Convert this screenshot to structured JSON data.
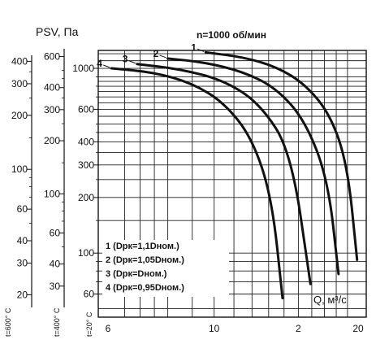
{
  "chart_data": {
    "type": "line",
    "title": "n=1000 об/мин",
    "ylabel": "PSV, Па",
    "xlabel": "Q, м³/с",
    "scale": "log-log",
    "grid": true,
    "x_axis": {
      "range": [
        6,
        20
      ],
      "tick_labels": [
        "6",
        "10",
        "2",
        "20"
      ]
    },
    "y_axes": [
      {
        "temperature": "t=20° C",
        "range": [
          45,
          1250
        ],
        "ticks": [
          60,
          100,
          200,
          300,
          400,
          600,
          1000
        ]
      },
      {
        "temperature": "t=400° C",
        "range": [
          20,
          650
        ],
        "ticks": [
          30,
          40,
          60,
          100,
          200,
          300,
          400,
          600
        ]
      },
      {
        "temperature": "t=600° C",
        "range": [
          15,
          460
        ],
        "ticks": [
          20,
          30,
          40,
          60,
          100,
          200,
          300,
          400
        ]
      }
    ],
    "series": [
      {
        "name": "1 (Dрк=1,1Dном.)",
        "label": "1",
        "x": [
          9.6,
          11.5,
          13.5,
          15.5,
          17.5,
          19.0,
          19.9
        ],
        "y": [
          1220,
          1150,
          1020,
          820,
          560,
          300,
          92
        ]
      },
      {
        "name": "2 (Dрк=1,05Dном.)",
        "label": "2",
        "x": [
          8.0,
          9.5,
          11.5,
          13.5,
          15.5,
          17.3,
          18.2
        ],
        "y": [
          1130,
          1080,
          960,
          780,
          520,
          250,
          77
        ]
      },
      {
        "name": "3 (Dрк=Dном.)",
        "label": "3",
        "x": [
          6.9,
          8.5,
          10.5,
          12.5,
          14.5,
          15.9
        ],
        "y": [
          1055,
          990,
          860,
          640,
          350,
          68
        ]
      },
      {
        "name": "4 (Dрк=0,95Dном.)",
        "label": "4",
        "x": [
          6.1,
          7.5,
          9.0,
          10.5,
          12.0,
          13.2,
          13.9
        ],
        "y": [
          1000,
          950,
          830,
          650,
          420,
          200,
          57
        ]
      }
    ]
  }
}
